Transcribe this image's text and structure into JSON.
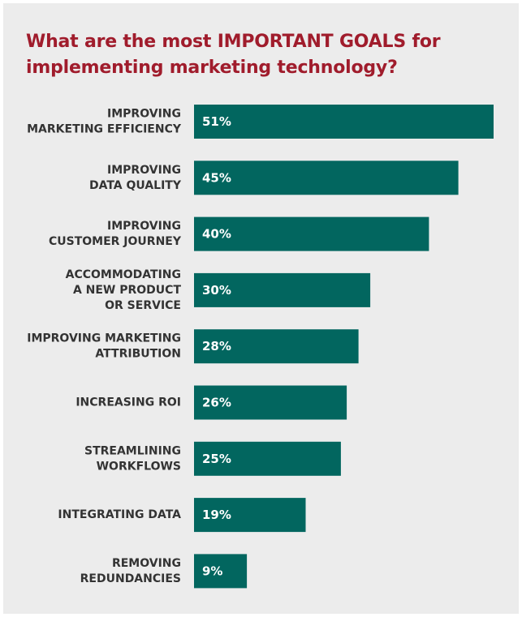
{
  "chart_data": {
    "type": "bar",
    "orientation": "horizontal",
    "title": "What are the most IMPORTANT GOALS for\nimplementing marketing technology?",
    "categories": [
      "IMPROVING\nMARKETING EFFICIENCY",
      "IMPROVING\nDATA QUALITY",
      "IMPROVING\nCUSTOMER JOURNEY",
      "ACCOMMODATING\nA NEW PRODUCT\nOR SERVICE",
      "IMPROVING MARKETING\nATTRIBUTION",
      "INCREASING ROI",
      "STREAMLINING\nWORKFLOWS",
      "INTEGRATING DATA",
      "REMOVING\nREDUNDANCIES"
    ],
    "values": [
      51,
      45,
      40,
      30,
      28,
      26,
      25,
      19,
      9
    ],
    "value_labels": [
      "51%",
      "45%",
      "40%",
      "30%",
      "28%",
      "26%",
      "25%",
      "19%",
      "9%"
    ],
    "unit": "%",
    "grid": false,
    "legend": "none",
    "colors": {
      "bar": "#02665f",
      "title": "#a01c2c",
      "category_text": "#333333",
      "value_text": "#ffffff",
      "background": "#ececec"
    }
  }
}
